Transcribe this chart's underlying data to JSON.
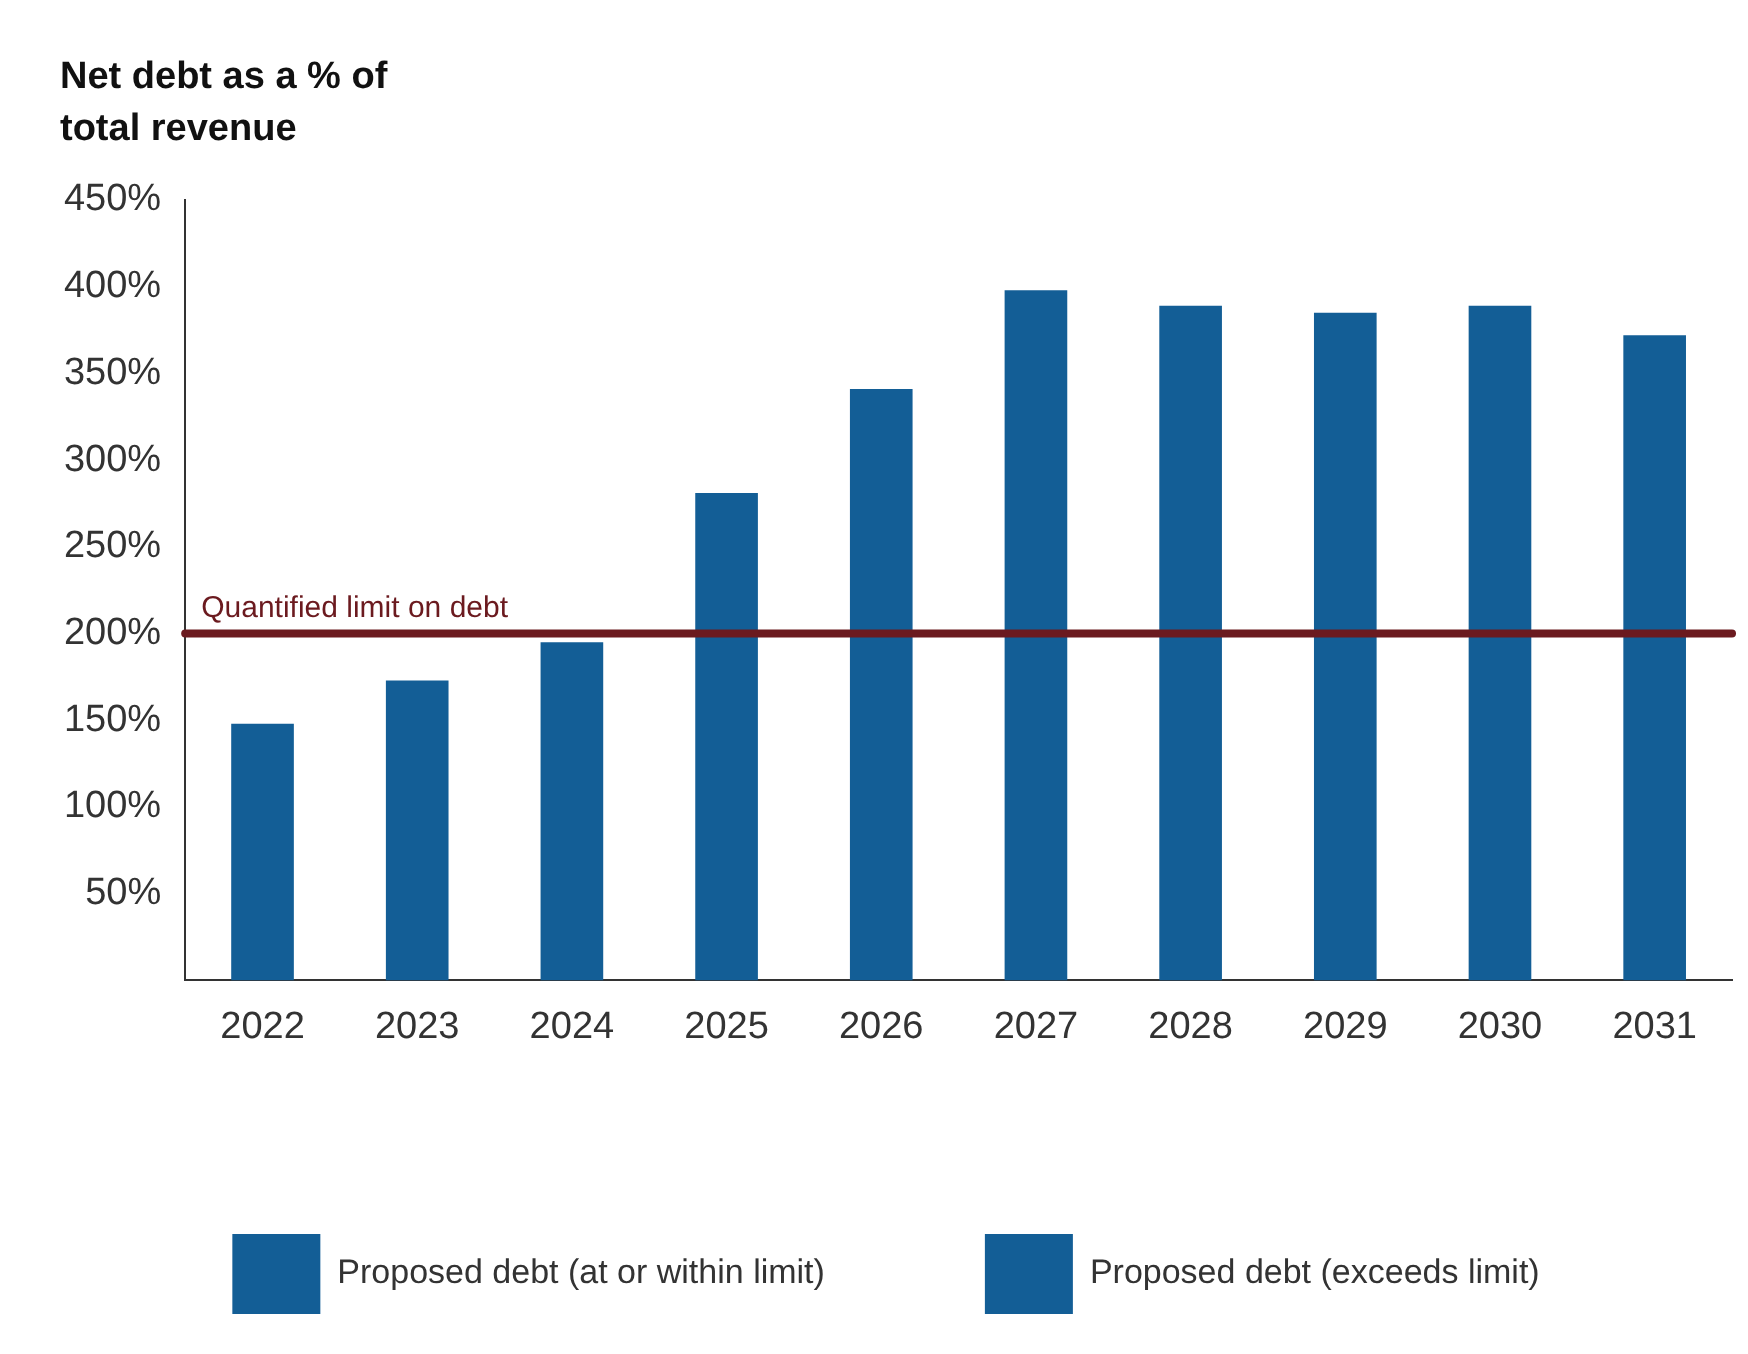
{
  "chart_data": {
    "type": "bar",
    "ylabel": "Net debt as a % of total revenue",
    "categories": [
      "2022",
      "2023",
      "2024",
      "2025",
      "2026",
      "2027",
      "2028",
      "2029",
      "2030",
      "2031"
    ],
    "series": [
      {
        "name": "Proposed debt (at or within limit)",
        "color": "#135e96",
        "values": [
          148,
          173,
          195,
          null,
          null,
          null,
          null,
          null,
          null,
          null
        ]
      },
      {
        "name": "Proposed debt (exceeds limit)",
        "color": "#135e96",
        "values": [
          null,
          null,
          null,
          281,
          341,
          398,
          389,
          385,
          389,
          372
        ]
      }
    ],
    "ylim": [
      0,
      450
    ],
    "yticks": [
      {
        "value": 0,
        "label": null
      },
      {
        "value": 50,
        "label": "50%"
      },
      {
        "value": 100,
        "label": "100%"
      },
      {
        "value": 150,
        "label": "150%"
      },
      {
        "value": 200,
        "label": "200%"
      },
      {
        "value": 250,
        "label": "250%"
      },
      {
        "value": 300,
        "label": "300%"
      },
      {
        "value": 350,
        "label": "350%"
      },
      {
        "value": 400,
        "label": "400%"
      },
      {
        "value": 450,
        "label": "450%"
      }
    ],
    "ref_lines": [
      {
        "axis": "y",
        "value": 200,
        "label": "Quantified limit on debt",
        "color": "#6b1a1f"
      }
    ],
    "grid": false,
    "legend": "bottom"
  }
}
